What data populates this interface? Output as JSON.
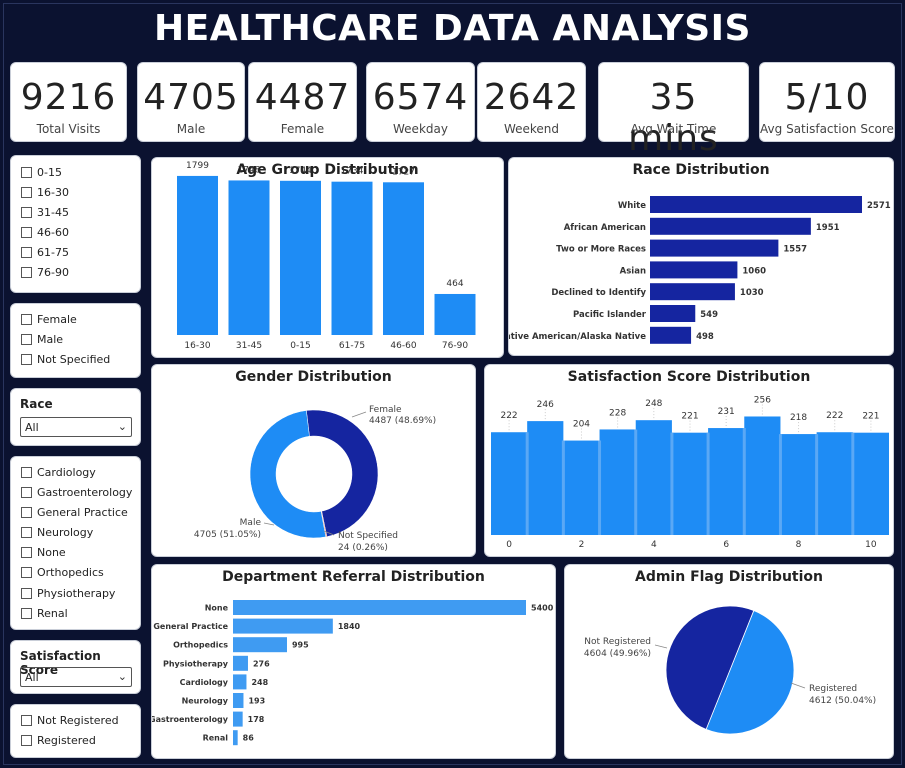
{
  "title": "HEALTHCARE DATA ANALYSIS",
  "kpis": [
    {
      "value": "9216",
      "label": "Total Visits"
    },
    {
      "value": "4705",
      "label": "Male"
    },
    {
      "value": "4487",
      "label": "Female"
    },
    {
      "value": "6574",
      "label": "Weekday"
    },
    {
      "value": "2642",
      "label": "Weekend"
    },
    {
      "value": "35 mins",
      "label": "Avg Wait Time"
    },
    {
      "value": "5/10",
      "label": "Avg Satisfaction Score"
    }
  ],
  "slicers": {
    "age_groups": [
      "0-15",
      "16-30",
      "31-45",
      "46-60",
      "61-75",
      "76-90"
    ],
    "genders": [
      "Female",
      "Male",
      "Not Specified"
    ],
    "race": {
      "title": "Race",
      "selected": "All"
    },
    "departments": [
      "Cardiology",
      "Gastroenterology",
      "General Practice",
      "Neurology",
      "None",
      "Orthopedics",
      "Physiotherapy",
      "Renal"
    ],
    "satisfaction": {
      "title": "Satisfaction Score",
      "selected": "All"
    },
    "admin_flags": [
      "Not Registered",
      "Registered"
    ]
  },
  "colors": {
    "primary": "#1e8cf5",
    "dark": "#1525a0",
    "light": "#3f9bf2"
  },
  "chart_data": [
    {
      "id": "age",
      "type": "bar",
      "title": "Age Group Distribution",
      "categories": [
        "16-30",
        "31-45",
        "0-15",
        "61-75",
        "46-60",
        "76-90"
      ],
      "values": [
        1799,
        1748,
        1744,
        1734,
        1727,
        464
      ],
      "ylim": [
        0,
        1900
      ]
    },
    {
      "id": "race",
      "type": "bar",
      "orientation": "horizontal",
      "title": "Race Distribution",
      "categories": [
        "White",
        "African American",
        "Two or More Races",
        "Asian",
        "Declined to Identify",
        "Pacific Islander",
        "Native American/Alaska Native"
      ],
      "values": [
        2571,
        1951,
        1557,
        1060,
        1030,
        549,
        498
      ]
    },
    {
      "id": "gender",
      "type": "pie",
      "donut": true,
      "title": "Gender Distribution",
      "slices": [
        {
          "label": "Female",
          "value": 4487,
          "text": "4487 (48.69%)"
        },
        {
          "label": "Not Specified",
          "value": 24,
          "text": "24 (0.26%)"
        },
        {
          "label": "Male",
          "value": 4705,
          "text": "4705 (51.05%)"
        }
      ]
    },
    {
      "id": "satisfaction",
      "type": "area",
      "title": "Satisfaction Score Distribution",
      "x": [
        0,
        1,
        2,
        3,
        4,
        5,
        6,
        7,
        8,
        9,
        10
      ],
      "values": [
        222,
        246,
        204,
        228,
        248,
        221,
        231,
        256,
        218,
        222,
        221
      ],
      "xticks": [
        0,
        2,
        4,
        6,
        8,
        10
      ],
      "ylim": [
        0,
        270
      ]
    },
    {
      "id": "department",
      "type": "bar",
      "orientation": "horizontal",
      "title": "Department Referral Distribution",
      "categories": [
        "None",
        "General Practice",
        "Orthopedics",
        "Physiotherapy",
        "Cardiology",
        "Neurology",
        "Gastroenterology",
        "Renal"
      ],
      "values": [
        5400,
        1840,
        995,
        276,
        248,
        193,
        178,
        86
      ]
    },
    {
      "id": "admin",
      "type": "pie",
      "title": "Admin Flag Distribution",
      "slices": [
        {
          "label": "Registered",
          "value": 4612,
          "text": "4612 (50.04%)"
        },
        {
          "label": "Not Registered",
          "value": 4604,
          "text": "4604 (49.96%)"
        }
      ]
    }
  ]
}
